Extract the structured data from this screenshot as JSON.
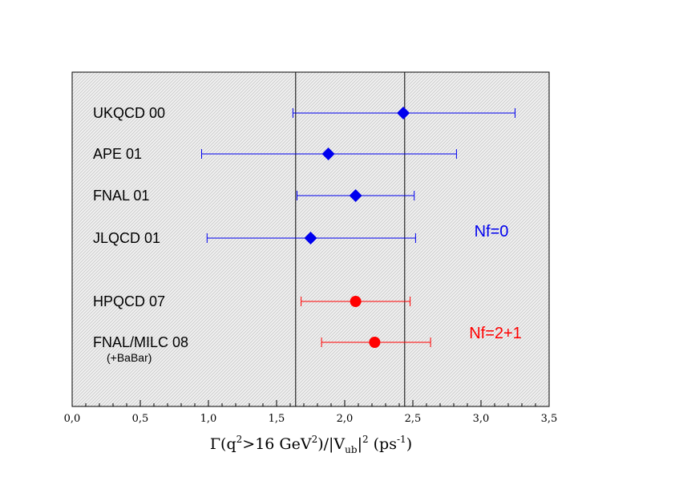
{
  "chart_data": {
    "type": "scatter",
    "subtype": "forest-plot-horizontal-error-bars",
    "title": "",
    "xlabel": {
      "main": "Γ(q",
      "sup1": "2",
      "mid1": ">16 GeV",
      "sup2": "2",
      "mid2": ")/|V",
      "sub": "ub",
      "mid3": "|",
      "sup3": "2",
      "mid4": " (ps",
      "sup4": "-1",
      "end": ")"
    },
    "xlim": [
      0,
      3.5
    ],
    "xticks": [
      {
        "value": 0,
        "label": "0,0"
      },
      {
        "value": 0.5,
        "label": "0,5"
      },
      {
        "value": 1.0,
        "label": "1,0"
      },
      {
        "value": 1.5,
        "label": "1,5"
      },
      {
        "value": 2.0,
        "label": "2,0"
      },
      {
        "value": 2.5,
        "label": "2,5"
      },
      {
        "value": 3.0,
        "label": "3,0"
      },
      {
        "value": 3.5,
        "label": "3,5"
      }
    ],
    "reference_lines": [
      1.64,
      2.44
    ],
    "series": [
      {
        "name": "Nf=0",
        "color": "#0000ee",
        "marker": "diamond",
        "points": [
          {
            "label": "UKQCD 00",
            "value": 2.43,
            "low": 1.62,
            "high": 3.25
          },
          {
            "label": "APE 01",
            "value": 1.88,
            "low": 0.95,
            "high": 2.82
          },
          {
            "label": "FNAL 01",
            "value": 2.08,
            "low": 1.65,
            "high": 2.51
          },
          {
            "label": "JLQCD 01",
            "value": 1.75,
            "low": 0.99,
            "high": 2.52
          }
        ]
      },
      {
        "name": "Nf=2+1",
        "color": "#ff0000",
        "marker": "circle",
        "points": [
          {
            "label": "HPQCD 07",
            "value": 2.08,
            "low": 1.68,
            "high": 2.48
          },
          {
            "label": "FNAL/MILC 08",
            "sublabel": "(+BaBar)",
            "value": 2.22,
            "low": 1.83,
            "high": 2.63
          }
        ]
      }
    ]
  }
}
